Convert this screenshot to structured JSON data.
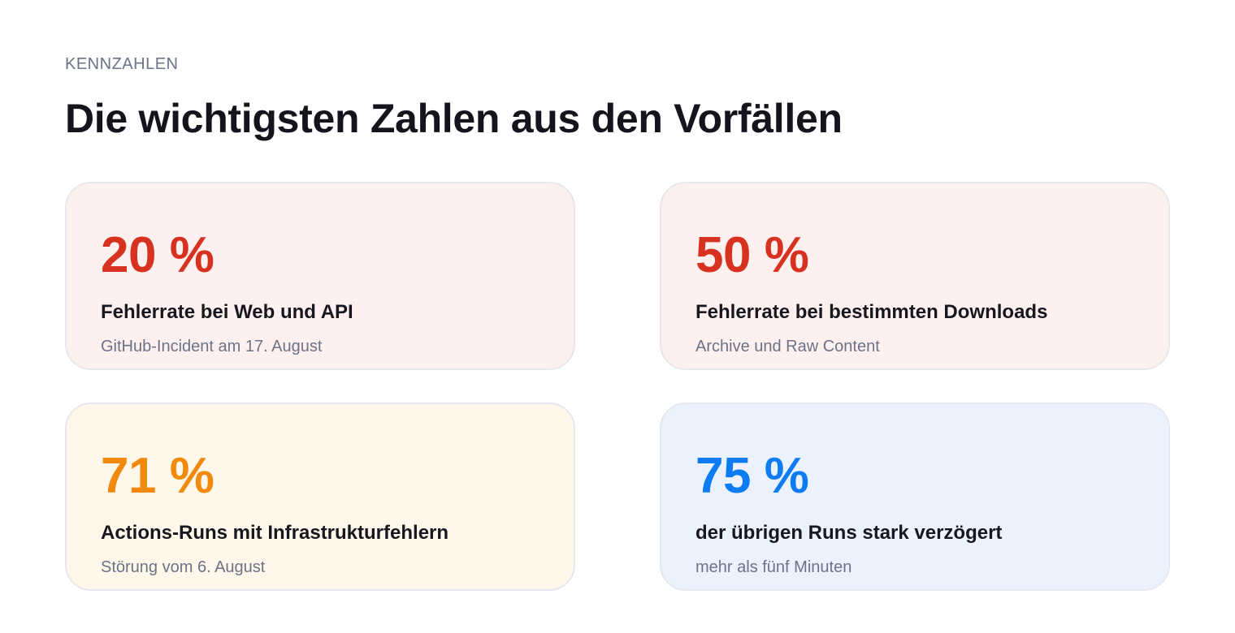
{
  "header": {
    "eyebrow": "KENNZAHLEN",
    "title": "Die wichtigsten Zahlen aus den Vorfällen"
  },
  "cards": [
    {
      "value": "20 %",
      "label": "Fehlerrate bei Web und API",
      "note": "GitHub-Incident am 17. August",
      "accent": "#d7311f"
    },
    {
      "value": "50 %",
      "label": "Fehlerrate bei bestimmten Downloads",
      "note": "Archive und Raw Content",
      "accent": "#d7311f"
    },
    {
      "value": "71 %",
      "label": "Actions-Runs mit Infrastrukturfehlern",
      "note": "Störung vom 6. August",
      "accent": "#f18a0c"
    },
    {
      "value": "75 %",
      "label": "der übrigen Runs stark verzögert",
      "note": "mehr als fünf Minuten",
      "accent": "#0d7cf2"
    }
  ]
}
